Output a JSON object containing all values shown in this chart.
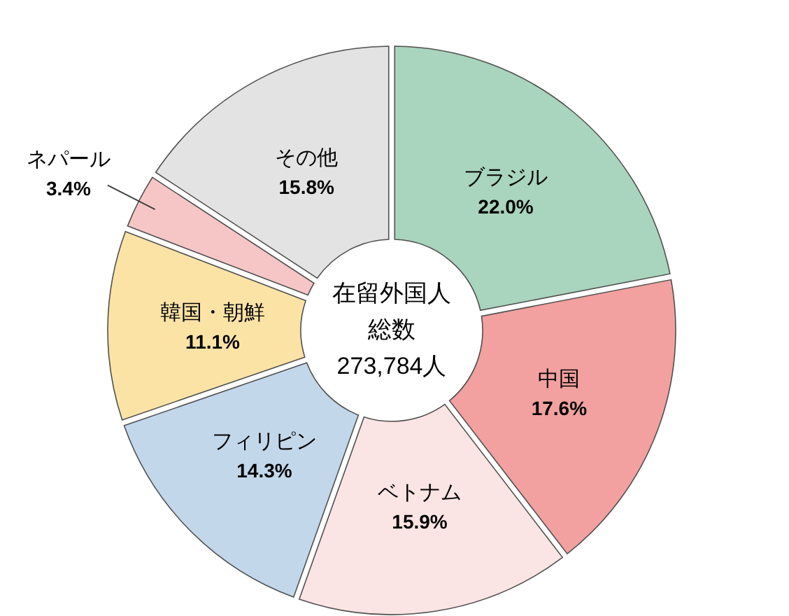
{
  "chart_data": {
    "type": "donut",
    "categories": [
      "ブラジル",
      "中国",
      "ベトナム",
      "フィリピン",
      "韓国・朝鮮",
      "ネパール",
      "その他"
    ],
    "values": [
      22.0,
      17.6,
      15.9,
      14.3,
      11.1,
      3.4,
      15.8
    ],
    "colors": [
      "#a9d4bd",
      "#f2a0a0",
      "#fbe4e4",
      "#c3d7ea",
      "#fbe3a6",
      "#f6c6c6",
      "#e3e3e3"
    ],
    "value_labels": [
      "22.0%",
      "17.6%",
      "15.9%",
      "14.3%",
      "11.1%",
      "3.4%",
      "15.8%"
    ],
    "annotations": [
      "在留外国人",
      "総数",
      "273,784人"
    ]
  }
}
